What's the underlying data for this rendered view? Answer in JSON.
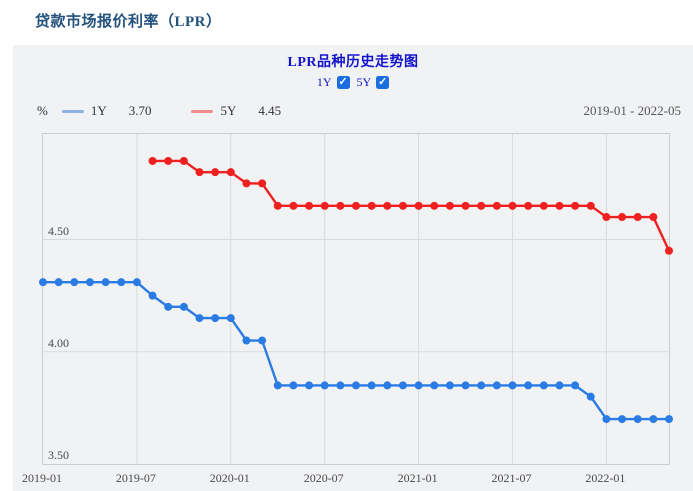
{
  "page": {
    "title": "贷款市场报价利率（LPR）"
  },
  "panel": {
    "chart_title": "LPR品种历史走势图",
    "toggles": [
      {
        "label": "1Y",
        "checked": true
      },
      {
        "label": "5Y",
        "checked": true
      }
    ],
    "unit": "%",
    "legend": [
      {
        "name": "1Y",
        "value": "3.70",
        "swatch_color": "#8fb2e2"
      },
      {
        "name": "5Y",
        "value": "4.45",
        "swatch_color": "#f28b8b"
      }
    ],
    "date_range": "2019-01 - 2022-05"
  },
  "colors": {
    "series_1y": "#2b7be4",
    "series_5y": "#ee2020",
    "legend_1y_swatch": "#8fb2e2",
    "legend_5y_swatch": "#f28b8b",
    "page_title_text": "#23527c",
    "chart_title_text": "#1313cc",
    "checkbox_fill": "#1a6ee0",
    "panel_bg": "#f1f2f4",
    "grid_line": "#d8dade",
    "plot_border": "#c9ccd1",
    "axis_text": "#4a4a4a"
  },
  "chart_data": {
    "type": "line",
    "title": "LPR品种历史走势图",
    "ylabel": "%",
    "ylim": [
      3.5,
      4.97
    ],
    "grid": true,
    "legend_position": "top-left",
    "x": [
      "2019-01",
      "2019-02",
      "2019-03",
      "2019-04",
      "2019-05",
      "2019-06",
      "2019-07",
      "2019-08",
      "2019-09",
      "2019-10",
      "2019-11",
      "2019-12",
      "2020-01",
      "2020-02",
      "2020-03",
      "2020-04",
      "2020-05",
      "2020-06",
      "2020-07",
      "2020-08",
      "2020-09",
      "2020-10",
      "2020-11",
      "2020-12",
      "2021-01",
      "2021-02",
      "2021-03",
      "2021-04",
      "2021-05",
      "2021-06",
      "2021-07",
      "2021-08",
      "2021-09",
      "2021-10",
      "2021-11",
      "2021-12",
      "2022-01",
      "2022-02",
      "2022-03",
      "2022-04",
      "2022-05"
    ],
    "x_ticks": [
      "2019-01",
      "2019-07",
      "2020-01",
      "2020-07",
      "2021-01",
      "2021-07",
      "2022-01"
    ],
    "y_ticks": [
      "4.50",
      "4.00",
      "3.50"
    ],
    "series": [
      {
        "name": "1Y",
        "color": "#2b7be4",
        "current_value": 3.7,
        "values": [
          4.31,
          4.31,
          4.31,
          4.31,
          4.31,
          4.31,
          4.31,
          4.25,
          4.2,
          4.2,
          4.15,
          4.15,
          4.15,
          4.05,
          4.05,
          3.85,
          3.85,
          3.85,
          3.85,
          3.85,
          3.85,
          3.85,
          3.85,
          3.85,
          3.85,
          3.85,
          3.85,
          3.85,
          3.85,
          3.85,
          3.85,
          3.85,
          3.85,
          3.85,
          3.85,
          3.8,
          3.7,
          3.7,
          3.7,
          3.7,
          3.7
        ]
      },
      {
        "name": "5Y",
        "color": "#ee2020",
        "current_value": 4.45,
        "values": [
          null,
          null,
          null,
          null,
          null,
          null,
          null,
          4.85,
          4.85,
          4.85,
          4.8,
          4.8,
          4.8,
          4.75,
          4.75,
          4.65,
          4.65,
          4.65,
          4.65,
          4.65,
          4.65,
          4.65,
          4.65,
          4.65,
          4.65,
          4.65,
          4.65,
          4.65,
          4.65,
          4.65,
          4.65,
          4.65,
          4.65,
          4.65,
          4.65,
          4.65,
          4.6,
          4.6,
          4.6,
          4.6,
          4.45
        ]
      }
    ]
  }
}
